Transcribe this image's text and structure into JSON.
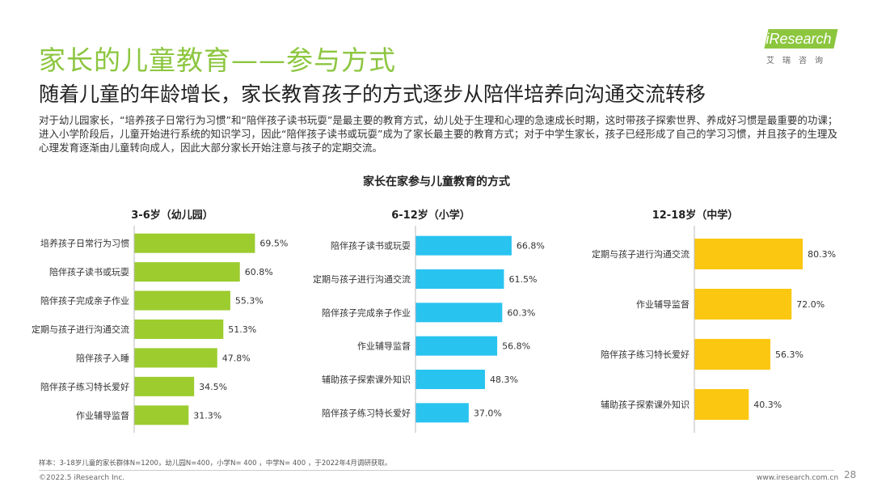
{
  "header": {
    "title": "家长的儿童教育——参与方式",
    "subtitle": "随着儿童的年龄增长，家长教育孩子的方式逐步从陪伴培养向沟通交流转移",
    "intro": "对于幼儿园家长，“培养孩子日常行为习惯”和“陪伴孩子读书玩耍”是最主要的教育方式，幼儿处于生理和心理的急速成长时期，这时带孩子探索世界、养成好习惯是最重要的功课；进入小学阶段后，儿童开始进行系统的知识学习，因此“陪伴孩子读书或玩耍”成为了家长最主要的教育方式；对于中学生家长，孩子已经形成了自己的学习习惯，并且孩子的生理及心理发育逐渐由儿童转向成人，因此大部分家长开始注意与孩子的定期交流。"
  },
  "logo": {
    "text": "iResearch",
    "sub": "艾瑞咨询"
  },
  "chart_title": "家长在家参与儿童教育的方式",
  "chart_data": [
    {
      "type": "bar",
      "orientation": "horizontal",
      "title": "3-6岁（幼儿园）",
      "color": "#9ccc2e",
      "categories": [
        "培养孩子日常行为习惯",
        "陪伴孩子读书或玩耍",
        "陪伴孩子完成亲子作业",
        "定期与孩子进行沟通交流",
        "陪伴孩子入睡",
        "陪伴孩子练习特长爱好",
        "作业辅导监督"
      ],
      "values": [
        69.5,
        60.8,
        55.3,
        51.3,
        47.8,
        34.5,
        31.3
      ],
      "labels": [
        "69.5%",
        "60.8%",
        "55.3%",
        "51.3%",
        "47.8%",
        "34.5%",
        "31.3%"
      ]
    },
    {
      "type": "bar",
      "orientation": "horizontal",
      "title": "6-12岁（小学）",
      "color": "#29c3f0",
      "categories": [
        "陪伴孩子读书或玩耍",
        "定期与孩子进行沟通交流",
        "陪伴孩子完成亲子作业",
        "作业辅导监督",
        "辅助孩子探索课外知识",
        "陪伴孩子练习特长爱好"
      ],
      "values": [
        66.8,
        61.5,
        60.3,
        56.8,
        48.3,
        37.0
      ],
      "labels": [
        "66.8%",
        "61.5%",
        "60.3%",
        "56.8%",
        "48.3%",
        "37.0%"
      ]
    },
    {
      "type": "bar",
      "orientation": "horizontal",
      "title": "12-18岁（中学）",
      "color": "#fbc711",
      "categories": [
        "定期与孩子进行沟通交流",
        "作业辅导监督",
        "陪伴孩子练习特长爱好",
        "辅助孩子探索课外知识"
      ],
      "values": [
        80.3,
        72.0,
        56.3,
        40.3
      ],
      "labels": [
        "80.3%",
        "72.0%",
        "56.3%",
        "40.3%"
      ]
    }
  ],
  "footer": {
    "note": "样本：3-18岁儿童的家长群体N=1200，幼儿园N=400，小学N= 400 ，中学N= 400 ，于2022年4月调研获取。",
    "copyright": "©2022.5 iResearch Inc.",
    "website": "www.iresearch.com.cn",
    "page": "28"
  }
}
